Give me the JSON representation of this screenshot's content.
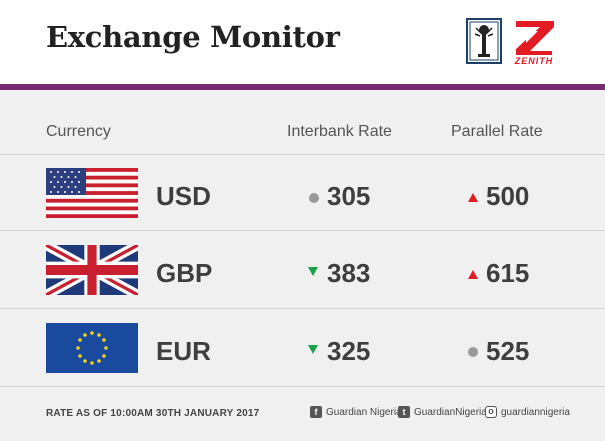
{
  "header": {
    "title": "Exchange Monitor",
    "zenith_label": "ZENITH",
    "purple_bar_color": "#7a2a6e"
  },
  "table": {
    "headers": {
      "currency": "Currency",
      "interbank": "Interbank Rate",
      "parallel": "Parallel Rate"
    },
    "rows": [
      {
        "code": "USD",
        "flag": "us-flag",
        "interbank": "305",
        "interbank_trend": "unchanged",
        "parallel": "500",
        "parallel_trend": "up"
      },
      {
        "code": "GBP",
        "flag": "uk-flag",
        "interbank": "383",
        "interbank_trend": "down",
        "parallel": "615",
        "parallel_trend": "up"
      },
      {
        "code": "EUR",
        "flag": "eu-flag",
        "interbank": "325",
        "interbank_trend": "down",
        "parallel": "525",
        "parallel_trend": "unchanged"
      }
    ]
  },
  "footer": {
    "note": "RATE AS OF 10:00AM 30TH JANUARY 2017",
    "facebook": "Guardian Nigeria",
    "twitter": "GuardianNigeria",
    "instagram": "guardiannigeria"
  },
  "colors": {
    "up": "#e31b23",
    "down": "#18a34a",
    "unchanged": "#9a9a9a"
  }
}
